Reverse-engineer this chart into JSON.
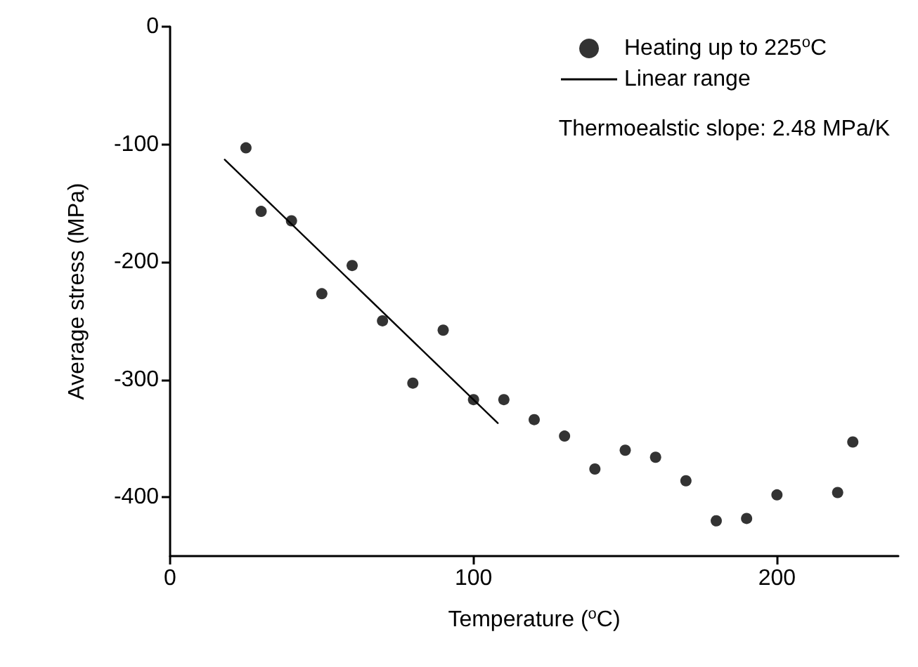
{
  "chart_data": {
    "type": "scatter",
    "xlabel": "Temperature ($^{o}$C)",
    "ylabel": "Average stress (MPa)",
    "annotations": [
      "Thermoealstic slope: 2.48 MPa/K"
    ],
    "xlim": [
      0,
      240
    ],
    "xticks": [
      0,
      100,
      200
    ],
    "ylim": [
      -450,
      0
    ],
    "yticks": [
      0,
      -100,
      -200,
      -300,
      -400
    ],
    "grid": false,
    "legend": "top right",
    "marker": "circle",
    "series": [
      {
        "name": "Heating up to 225$^{o}$C",
        "color": "#000000",
        "x": [
          25,
          30,
          40,
          50,
          60,
          70,
          80,
          90,
          100,
          110,
          120,
          130,
          140,
          150,
          160,
          170,
          180,
          190,
          200,
          220,
          225
        ],
        "values": [
          -103,
          -157,
          -165,
          -227,
          -203,
          -250,
          -303,
          -258,
          -317,
          -317,
          -334,
          -348,
          -376,
          -360,
          -366,
          -386,
          -420,
          -418,
          -398,
          -396,
          -353
        ]
      },
      {
        "name": "Linear range",
        "type": "line",
        "color": "#000000",
        "x": [
          18,
          108
        ],
        "values": [
          -113,
          -337
        ],
        "line_style": "solid",
        "marker": "none"
      }
    ]
  }
}
